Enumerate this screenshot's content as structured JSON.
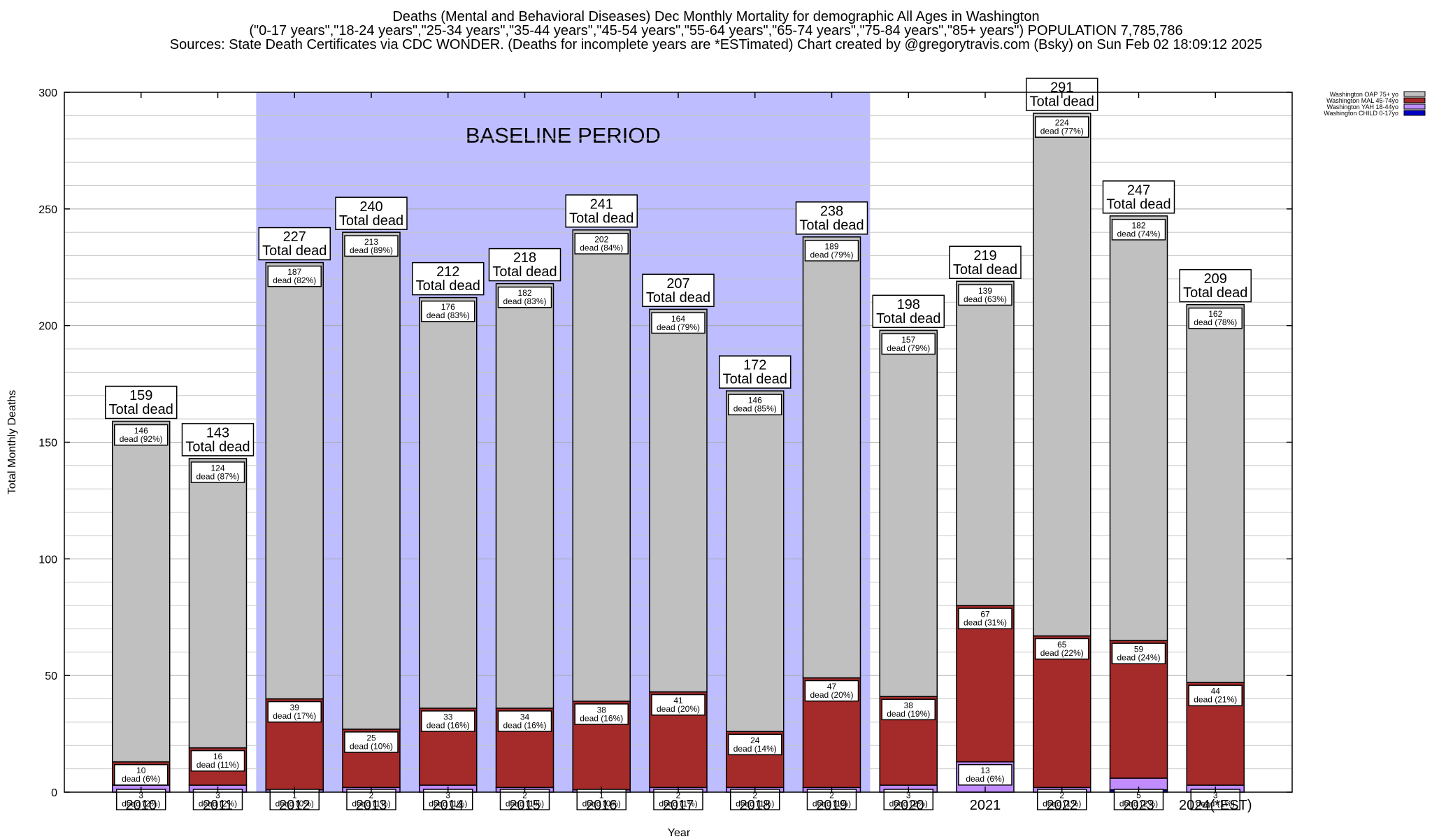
{
  "title": {
    "line1": "Deaths (Mental and Behavioral Diseases) Dec Monthly Mortality for demographic All Ages in Washington",
    "line2": "(\"0-17 years\",\"18-24 years\",\"25-34 years\",\"35-44 years\",\"45-54 years\",\"55-64 years\",\"65-74 years\",\"75-84 years\",\"85+ years\") POPULATION 7,785,786",
    "line3": "Sources: State Death Certificates via CDC WONDER. (Deaths for incomplete years are *ESTimated)                Chart created by @gregorytravis.com (Bsky) on Sun Feb 02 18:09:12 2025"
  },
  "chart_data": {
    "type": "bar",
    "stacked": true,
    "xlabel": "Year",
    "ylabel": "Total Monthly Deaths",
    "ylim": [
      0,
      300
    ],
    "yticks": [
      0,
      50,
      100,
      150,
      200,
      250,
      300
    ],
    "grid": true,
    "legend_position": "top-right",
    "baseline_label": "BASELINE PERIOD",
    "baseline_range": [
      "2012",
      "2019"
    ],
    "total_label": "Total dead",
    "dead_word": "dead",
    "categories": [
      "2010",
      "2011",
      "2012",
      "2013",
      "2014",
      "2015",
      "2016",
      "2017",
      "2018",
      "2019",
      "2020",
      "2021",
      "2022",
      "2023",
      "2024(*EST)"
    ],
    "series": [
      {
        "name": "Washington CHILD 0-17yo",
        "color": "#0000c8",
        "values": [
          0,
          0,
          0,
          0,
          0,
          0,
          0,
          0,
          0,
          0,
          0,
          0,
          0,
          1,
          0
        ],
        "pcts": []
      },
      {
        "name": "Washington YAH 18-44yo",
        "color": "#c08cff",
        "values": [
          3,
          3,
          1,
          2,
          3,
          2,
          1,
          2,
          2,
          2,
          3,
          13,
          2,
          5,
          3
        ],
        "pcts": [
          "2%",
          "2%",
          "0%",
          "1%",
          "1%",
          "1%",
          "0%",
          "1%",
          "1%",
          "1%",
          "2%",
          "6%",
          "1%",
          "2%",
          "1%"
        ]
      },
      {
        "name": "Washington MAL 45-74yo",
        "color": "#a52a2a",
        "values": [
          10,
          16,
          39,
          25,
          33,
          34,
          38,
          41,
          24,
          47,
          38,
          67,
          65,
          59,
          44
        ],
        "pcts": [
          "6%",
          "11%",
          "17%",
          "10%",
          "16%",
          "16%",
          "16%",
          "20%",
          "14%",
          "20%",
          "19%",
          "31%",
          "22%",
          "24%",
          "21%"
        ]
      },
      {
        "name": "Washington OAP 75+ yo",
        "color": "#c0c0c0",
        "values": [
          146,
          124,
          187,
          213,
          176,
          182,
          202,
          164,
          146,
          189,
          157,
          139,
          224,
          182,
          162
        ],
        "pcts": [
          "92%",
          "87%",
          "82%",
          "89%",
          "83%",
          "83%",
          "84%",
          "79%",
          "85%",
          "79%",
          "79%",
          "63%",
          "77%",
          "74%",
          "78%"
        ]
      }
    ],
    "totals": [
      159,
      143,
      227,
      240,
      212,
      218,
      241,
      207,
      172,
      238,
      198,
      219,
      291,
      247,
      209
    ]
  }
}
